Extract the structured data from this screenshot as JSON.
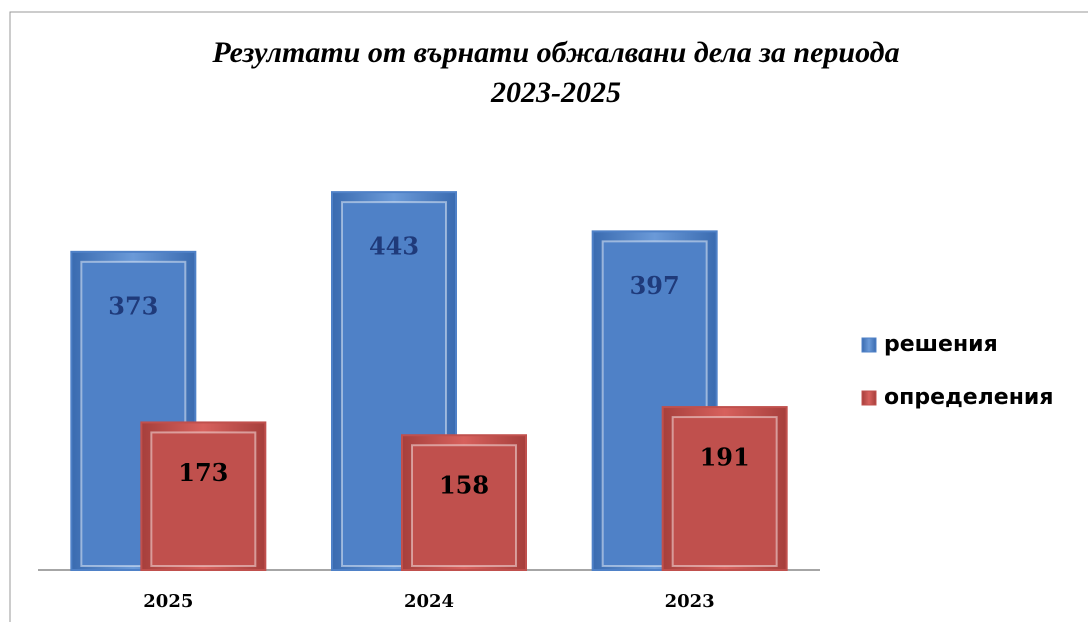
{
  "chart_data": {
    "type": "bar",
    "title": [
      "Резултати от върнати обжалвани дела за периода",
      "2023-2025"
    ],
    "categories": [
      "2025",
      "2024",
      "2023"
    ],
    "series": [
      {
        "name": "решения",
        "color": "#4f81c7",
        "values": [
          373,
          443,
          397
        ]
      },
      {
        "name": "определения",
        "color": "#c0504d",
        "values": [
          173,
          158,
          191
        ]
      }
    ],
    "legend": "right"
  }
}
